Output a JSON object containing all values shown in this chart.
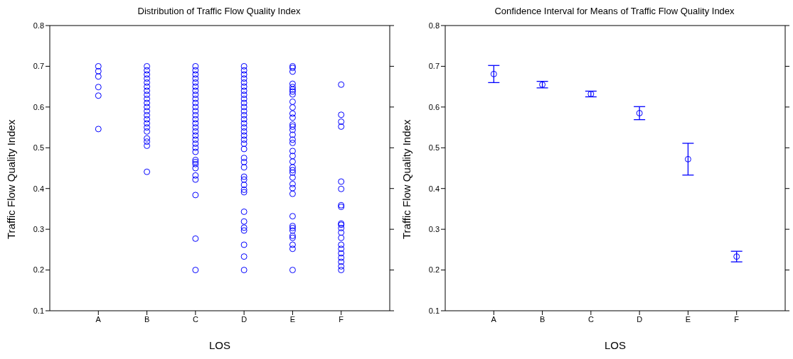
{
  "chart_data": [
    {
      "type": "scatter",
      "title": "Distribution of Traffic Flow Quality Index",
      "xlabel": "LOS",
      "ylabel": "Traffic Flow Quality Index",
      "categories": [
        "A",
        "B",
        "C",
        "D",
        "E",
        "F"
      ],
      "ylim": [
        0.1,
        0.8
      ],
      "yticks": [
        0.1,
        0.2,
        0.3,
        0.4,
        0.5,
        0.6,
        0.7,
        0.8
      ],
      "grid": false,
      "legend": false,
      "marker": "circle",
      "series": [
        {
          "color": "#0000ff",
          "x": [
            "A",
            "A",
            "A",
            "A",
            "A",
            "A",
            "B",
            "B",
            "B",
            "B",
            "B",
            "B",
            "B",
            "B",
            "B",
            "B",
            "B",
            "B",
            "B",
            "B",
            "B",
            "B",
            "B",
            "B",
            "B",
            "B",
            "B",
            "C",
            "C",
            "C",
            "C",
            "C",
            "C",
            "C",
            "C",
            "C",
            "C",
            "C",
            "C",
            "C",
            "C",
            "C",
            "C",
            "C",
            "C",
            "C",
            "C",
            "C",
            "C",
            "C",
            "C",
            "C",
            "C",
            "C",
            "C",
            "C",
            "C",
            "C",
            "D",
            "D",
            "D",
            "D",
            "D",
            "D",
            "D",
            "D",
            "D",
            "D",
            "D",
            "D",
            "D",
            "D",
            "D",
            "D",
            "D",
            "D",
            "D",
            "D",
            "D",
            "D",
            "D",
            "D",
            "D",
            "D",
            "D",
            "D",
            "D",
            "D",
            "D",
            "D",
            "D",
            "D",
            "D",
            "D",
            "E",
            "E",
            "E",
            "E",
            "E",
            "E",
            "E",
            "E",
            "E",
            "E",
            "E",
            "E",
            "E",
            "E",
            "E",
            "E",
            "E",
            "E",
            "E",
            "E",
            "E",
            "E",
            "E",
            "E",
            "E",
            "E",
            "E",
            "E",
            "E",
            "E",
            "E",
            "E",
            "E",
            "E",
            "E",
            "E",
            "E",
            "F",
            "F",
            "F",
            "F",
            "F",
            "F",
            "F",
            "F",
            "F",
            "F",
            "F",
            "F",
            "F",
            "F",
            "F",
            "F",
            "F",
            "F",
            "F",
            "F"
          ],
          "values": [
            0.7,
            0.688,
            0.675,
            0.649,
            0.628,
            0.546,
            0.7,
            0.69,
            0.68,
            0.67,
            0.66,
            0.65,
            0.64,
            0.63,
            0.62,
            0.61,
            0.6,
            0.59,
            0.58,
            0.57,
            0.56,
            0.55,
            0.54,
            0.523,
            0.515,
            0.505,
            0.441,
            0.7,
            0.69,
            0.68,
            0.67,
            0.66,
            0.65,
            0.64,
            0.63,
            0.62,
            0.61,
            0.6,
            0.59,
            0.58,
            0.57,
            0.56,
            0.55,
            0.54,
            0.53,
            0.52,
            0.51,
            0.5,
            0.49,
            0.47,
            0.465,
            0.46,
            0.45,
            0.432,
            0.422,
            0.384,
            0.277,
            0.2,
            0.7,
            0.69,
            0.68,
            0.67,
            0.66,
            0.65,
            0.64,
            0.63,
            0.62,
            0.61,
            0.6,
            0.59,
            0.58,
            0.57,
            0.56,
            0.55,
            0.54,
            0.53,
            0.52,
            0.51,
            0.497,
            0.475,
            0.465,
            0.452,
            0.429,
            0.422,
            0.409,
            0.397,
            0.391,
            0.343,
            0.319,
            0.304,
            0.297,
            0.262,
            0.233,
            0.2,
            0.7,
            0.696,
            0.687,
            0.657,
            0.649,
            0.643,
            0.638,
            0.631,
            0.613,
            0.599,
            0.584,
            0.574,
            0.557,
            0.552,
            0.544,
            0.532,
            0.52,
            0.512,
            0.492,
            0.48,
            0.466,
            0.452,
            0.445,
            0.439,
            0.427,
            0.411,
            0.401,
            0.387,
            0.332,
            0.308,
            0.303,
            0.297,
            0.284,
            0.279,
            0.262,
            0.252,
            0.2,
            0.655,
            0.581,
            0.564,
            0.552,
            0.417,
            0.399,
            0.359,
            0.355,
            0.314,
            0.311,
            0.303,
            0.292,
            0.279,
            0.262,
            0.252,
            0.241,
            0.23,
            0.22,
            0.209,
            0.2
          ]
        }
      ]
    },
    {
      "type": "scatter",
      "title": "Confidence Interval for Means of Traffic Flow Quality Index",
      "xlabel": "LOS",
      "ylabel": "Traffic Flow Quality Index",
      "categories": [
        "A",
        "B",
        "C",
        "D",
        "E",
        "F"
      ],
      "ylim": [
        0.1,
        0.8
      ],
      "yticks": [
        0.1,
        0.2,
        0.3,
        0.4,
        0.5,
        0.6,
        0.7,
        0.8
      ],
      "grid": false,
      "legend": false,
      "marker": "circle",
      "series": [
        {
          "color": "#0000ff",
          "values": [
            0.681,
            0.655,
            0.632,
            0.585,
            0.472,
            0.233
          ],
          "errors": [
            0.021,
            0.008,
            0.007,
            0.016,
            0.039,
            0.013
          ]
        }
      ]
    }
  ]
}
